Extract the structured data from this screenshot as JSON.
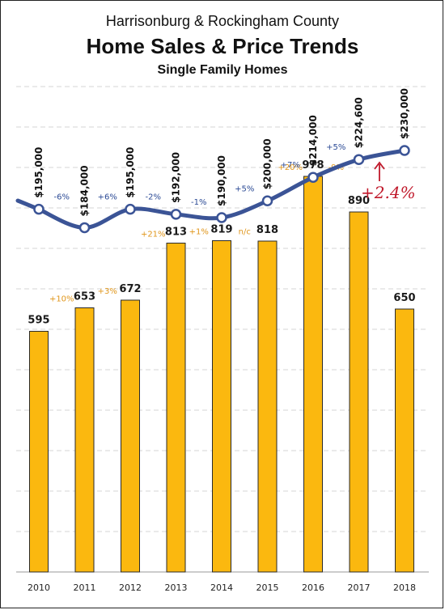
{
  "header": {
    "line1": "Harrisonburg & Rockingham County",
    "line2": "Home Sales & Price Trends",
    "line3": "Single Family Homes"
  },
  "colors": {
    "bar": "#fbb80f",
    "line": "#3b5496",
    "count_change": "#e0961b",
    "price_change": "#2b4a95",
    "handwritten": "#c0192b"
  },
  "chart_data": {
    "type": "bar",
    "categories": [
      "2010",
      "2011",
      "2012",
      "2013",
      "2014",
      "2015",
      "2016",
      "2017",
      "2018"
    ],
    "series": [
      {
        "type": "bar",
        "values": [
          595,
          653,
          672,
          813,
          819,
          818,
          978,
          890,
          650
        ],
        "labels": [
          "595",
          "653",
          "672",
          "813",
          "819",
          "818",
          "978",
          "890",
          "650"
        ],
        "changes": [
          "",
          "+10%",
          "+3%",
          "+21%",
          "+1%",
          "n/c",
          "+20%",
          "-9%",
          ""
        ]
      },
      {
        "type": "line",
        "values": [
          195000,
          184000,
          195000,
          192000,
          190000,
          200000,
          214000,
          224600,
          230000
        ],
        "labels": [
          "$195,000",
          "$184,000",
          "$195,000",
          "$192,000",
          "$190,000",
          "$200,000",
          "$214,000",
          "$224,600",
          "$230,000"
        ],
        "changes": [
          "",
          "-6%",
          "+6%",
          "-2%",
          "-1%",
          "+5%",
          "+7%",
          "+5%",
          ""
        ]
      }
    ],
    "annotation": "+2.4%",
    "grid": true,
    "ylim": [
      0,
      1200
    ]
  }
}
